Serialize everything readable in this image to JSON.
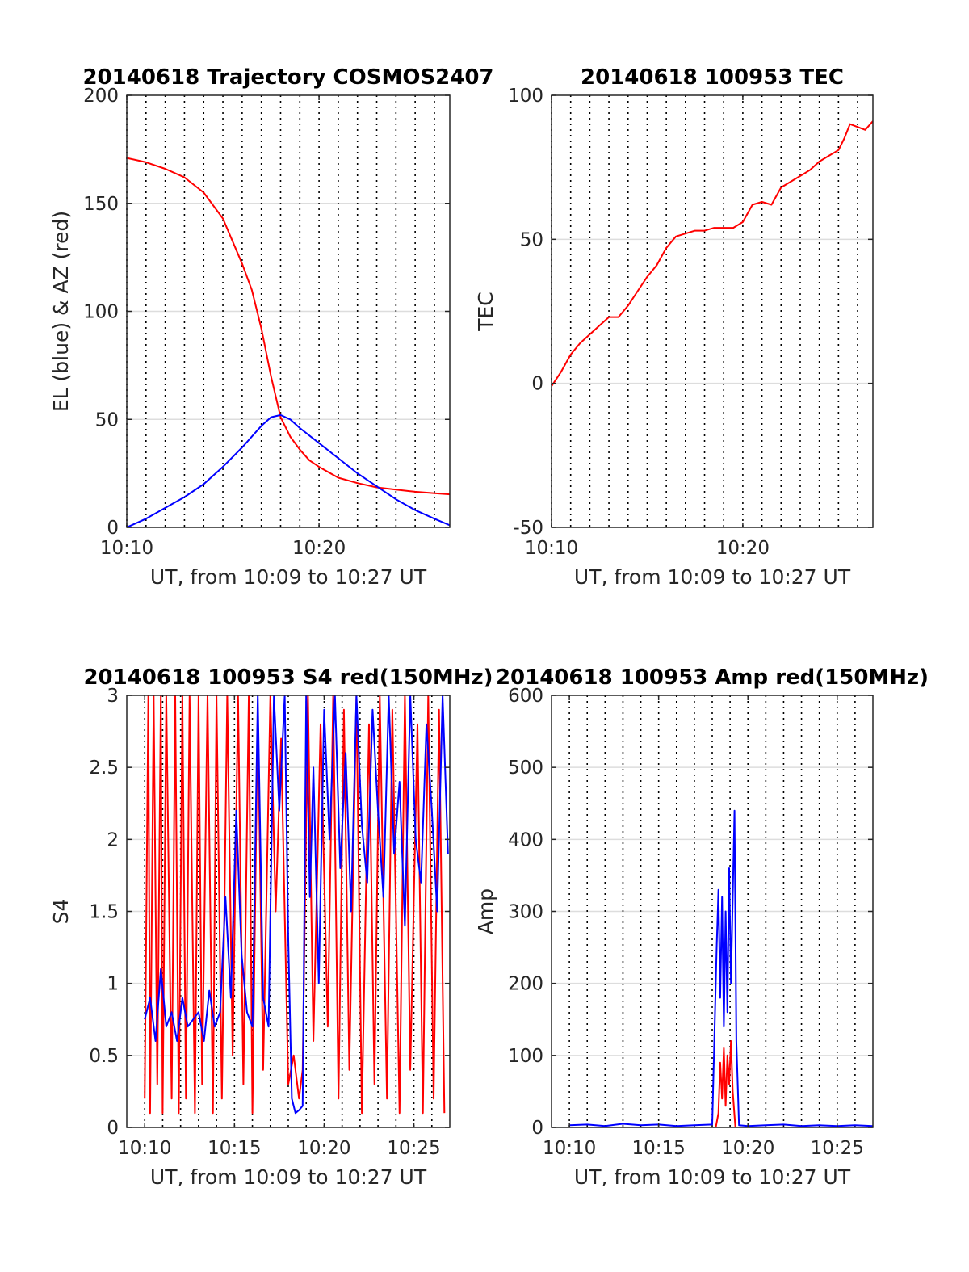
{
  "colors": {
    "el": "#0000ff",
    "az": "#ff0000",
    "axis": "#262626",
    "grid": "#dddddd"
  },
  "chart_data": [
    {
      "type": "line",
      "title": "20140618 Trajectory COSMOS2407",
      "xlabel": "UT, from 10:09 to 10:27 UT",
      "ylabel": "EL (blue) & AZ (red)",
      "xlim": [
        10.0,
        26.8
      ],
      "ylim": [
        0,
        200
      ],
      "xticks": [
        {
          "v": 10,
          "label": "10:10"
        },
        {
          "v": 20,
          "label": "10:20"
        }
      ],
      "yticks": [
        0,
        50,
        100,
        150,
        200
      ],
      "x_minor_grid": [
        10,
        11,
        12,
        13,
        14,
        15,
        16,
        17,
        18,
        19,
        20,
        21,
        22,
        23,
        24,
        25,
        26
      ],
      "grid": true,
      "series": [
        {
          "color": "#ff0000",
          "x": [
            10.0,
            11.0,
            12.0,
            13.0,
            14.0,
            15.0,
            16.0,
            16.5,
            17.0,
            17.5,
            18.0,
            18.5,
            19.0,
            19.5,
            20.0,
            21.0,
            22.0,
            23.0,
            24.0,
            25.0,
            26.0,
            26.8
          ],
          "y": [
            171,
            169,
            166,
            162,
            155,
            143,
            122,
            110,
            92,
            70,
            51,
            42,
            36,
            31,
            28,
            23,
            20.5,
            18.5,
            17.5,
            16.5,
            15.8,
            15.3
          ]
        },
        {
          "color": "#0000ff",
          "x": [
            10.0,
            11.0,
            12.0,
            13.0,
            14.0,
            15.0,
            16.0,
            17.0,
            17.5,
            18.0,
            18.5,
            19.0,
            20.0,
            21.0,
            22.0,
            23.0,
            24.0,
            25.0,
            26.0,
            26.8
          ],
          "y": [
            0,
            4,
            9,
            14,
            20,
            28,
            37,
            47,
            51,
            52,
            50,
            46,
            39,
            32,
            25,
            19,
            13,
            8,
            4,
            1
          ]
        }
      ]
    },
    {
      "type": "line",
      "title": "20140618 100953 TEC",
      "xlabel": "UT, from 10:09 to 10:27 UT",
      "ylabel": "TEC",
      "xlim": [
        10.0,
        26.8
      ],
      "ylim": [
        -50,
        100
      ],
      "xticks": [
        {
          "v": 10,
          "label": "10:10"
        },
        {
          "v": 20,
          "label": "10:20"
        }
      ],
      "yticks": [
        -50,
        0,
        50,
        100
      ],
      "x_minor_grid": [
        10,
        11,
        12,
        13,
        14,
        15,
        16,
        17,
        18,
        19,
        20,
        21,
        22,
        23,
        24,
        25,
        26
      ],
      "grid": true,
      "series": [
        {
          "color": "#ff0000",
          "x": [
            10.0,
            10.5,
            11.0,
            11.5,
            12.0,
            12.5,
            13.0,
            13.5,
            14.0,
            14.5,
            15.0,
            15.5,
            16.0,
            16.5,
            17.0,
            17.5,
            18.0,
            18.5,
            19.0,
            19.5,
            20.0,
            20.5,
            21.0,
            21.5,
            22.0,
            22.5,
            23.0,
            23.5,
            24.0,
            24.5,
            25.0,
            25.3,
            25.6,
            26.0,
            26.4,
            26.8
          ],
          "y": [
            -1,
            4,
            10,
            14,
            17,
            20,
            23,
            23,
            27,
            32,
            37,
            41,
            47,
            51,
            52,
            53,
            53,
            54,
            54,
            54,
            56,
            62,
            63,
            62,
            68,
            70,
            72,
            74,
            77,
            79,
            81,
            85,
            90,
            89,
            88,
            91
          ]
        }
      ]
    },
    {
      "type": "line",
      "title": "20140618 100953 S4 red(150MHz)",
      "xlabel": "UT, from 10:09 to 10:27 UT",
      "ylabel": "S4",
      "xlim": [
        9.0,
        27.0
      ],
      "ylim": [
        0,
        3
      ],
      "xticks": [
        {
          "v": 10,
          "label": "10:10"
        },
        {
          "v": 15,
          "label": "10:15"
        },
        {
          "v": 20,
          "label": "10:20"
        },
        {
          "v": 25,
          "label": "10:25"
        }
      ],
      "yticks": [
        {
          "v": 0,
          "label": "0"
        },
        {
          "v": 0.5,
          "label": "0.5"
        },
        {
          "v": 1,
          "label": "1"
        },
        {
          "v": 1.5,
          "label": "1.5"
        },
        {
          "v": 2,
          "label": "2"
        },
        {
          "v": 2.5,
          "label": "2.5"
        },
        {
          "v": 3,
          "label": "3"
        }
      ],
      "x_minor_grid": [
        10,
        11,
        12,
        13,
        14,
        15,
        16,
        17,
        18,
        19,
        20,
        21,
        22,
        23,
        24,
        25,
        26
      ],
      "grid": true,
      "series": [
        {
          "color": "#ff0000",
          "x": [
            10.0,
            10.2,
            10.3,
            10.5,
            10.7,
            10.9,
            11.0,
            11.2,
            11.5,
            11.7,
            11.9,
            12.1,
            12.3,
            12.5,
            12.8,
            13.0,
            13.2,
            13.5,
            13.8,
            14.0,
            14.3,
            14.6,
            14.9,
            15.2,
            15.5,
            15.8,
            16.0,
            16.3,
            16.6,
            17.0,
            17.3,
            17.6,
            18.0,
            18.3,
            18.6,
            18.8,
            19.1,
            19.4,
            19.8,
            20.2,
            20.5,
            20.8,
            21.1,
            21.4,
            21.8,
            22.1,
            22.5,
            22.8,
            23.1,
            23.5,
            23.8,
            24.2,
            24.5,
            24.8,
            25.2,
            25.5,
            25.8,
            26.1,
            26.4,
            26.7
          ],
          "y": [
            0.2,
            3.0,
            0.1,
            3.0,
            0.3,
            3.0,
            0.1,
            3.0,
            0.2,
            3.0,
            0.1,
            3.0,
            0.2,
            3.0,
            0.1,
            3.0,
            0.3,
            3.0,
            0.1,
            3.0,
            0.2,
            3.0,
            0.5,
            3.0,
            0.3,
            3.0,
            0.1,
            2.9,
            0.4,
            3.0,
            1.5,
            2.7,
            0.3,
            0.5,
            0.2,
            0.4,
            3.0,
            0.6,
            2.8,
            0.7,
            3.0,
            0.2,
            2.9,
            0.4,
            3.0,
            0.1,
            2.8,
            0.3,
            3.0,
            0.2,
            2.9,
            0.1,
            3.0,
            0.4,
            2.8,
            0.1,
            3.0,
            0.2,
            2.9,
            0.1
          ]
        },
        {
          "color": "#0000ff",
          "x": [
            10.0,
            10.3,
            10.6,
            10.9,
            11.2,
            11.5,
            11.8,
            12.1,
            12.4,
            12.7,
            13.0,
            13.3,
            13.6,
            13.9,
            14.2,
            14.5,
            14.8,
            15.1,
            15.4,
            15.7,
            16.0,
            16.3,
            16.6,
            16.9,
            17.2,
            17.5,
            17.8,
            18.0,
            18.2,
            18.4,
            18.6,
            18.8,
            19.0,
            19.2,
            19.4,
            19.7,
            20.0,
            20.3,
            20.6,
            20.9,
            21.2,
            21.5,
            21.8,
            22.1,
            22.4,
            22.7,
            23.0,
            23.3,
            23.6,
            23.9,
            24.2,
            24.5,
            24.8,
            25.1,
            25.4,
            25.7,
            26.0,
            26.3,
            26.6,
            26.9
          ],
          "y": [
            0.75,
            0.9,
            0.6,
            1.1,
            0.7,
            0.8,
            0.6,
            0.9,
            0.7,
            0.75,
            0.8,
            0.6,
            0.95,
            0.7,
            0.8,
            1.6,
            0.9,
            2.2,
            1.2,
            0.8,
            0.7,
            3.0,
            0.9,
            0.7,
            3.0,
            2.2,
            3.0,
            1.3,
            0.2,
            0.1,
            0.12,
            0.15,
            3.0,
            1.6,
            2.5,
            1.0,
            2.9,
            2.0,
            3.0,
            1.8,
            2.6,
            1.5,
            3.0,
            2.1,
            1.7,
            2.9,
            2.2,
            1.6,
            3.0,
            1.9,
            2.4,
            1.4,
            3.0,
            2.0,
            1.7,
            2.8,
            2.2,
            1.5,
            3.0,
            1.9
          ]
        }
      ]
    },
    {
      "type": "line",
      "title": "20140618 100953 Amp red(150MHz)",
      "xlabel": "UT, from 10:09 to 10:27 UT",
      "ylabel": "Amp",
      "xlim": [
        9.0,
        27.0
      ],
      "ylim": [
        0,
        600
      ],
      "xticks": [
        {
          "v": 10,
          "label": "10:10"
        },
        {
          "v": 15,
          "label": "10:15"
        },
        {
          "v": 20,
          "label": "10:20"
        },
        {
          "v": 25,
          "label": "10:25"
        }
      ],
      "yticks": [
        0,
        100,
        200,
        300,
        400,
        500,
        600
      ],
      "x_minor_grid": [
        10,
        11,
        12,
        13,
        14,
        15,
        16,
        17,
        18,
        19,
        20,
        21,
        22,
        23,
        24,
        25,
        26
      ],
      "grid": true,
      "series": [
        {
          "color": "#ff0000",
          "x": [
            10.0,
            18.2,
            18.35,
            18.45,
            18.55,
            18.65,
            18.75,
            18.85,
            18.95,
            19.05,
            19.15,
            19.3,
            27.0
          ],
          "y": [
            0,
            0,
            20,
            90,
            40,
            110,
            30,
            100,
            60,
            120,
            50,
            0,
            0
          ]
        },
        {
          "color": "#0000ff",
          "x": [
            10.0,
            11.0,
            12.0,
            13.0,
            14.0,
            15.0,
            16.0,
            17.0,
            18.0,
            18.25,
            18.35,
            18.45,
            18.55,
            18.65,
            18.75,
            18.85,
            18.95,
            19.05,
            19.15,
            19.25,
            19.35,
            19.5,
            20.0,
            21.0,
            22.0,
            23.0,
            24.0,
            25.0,
            26.0,
            27.0
          ],
          "y": [
            3,
            4,
            2,
            5,
            3,
            4,
            2,
            3,
            4,
            250,
            330,
            180,
            320,
            140,
            300,
            160,
            360,
            200,
            320,
            440,
            120,
            3,
            2,
            3,
            4,
            2,
            3,
            2,
            3,
            2
          ]
        }
      ]
    }
  ]
}
